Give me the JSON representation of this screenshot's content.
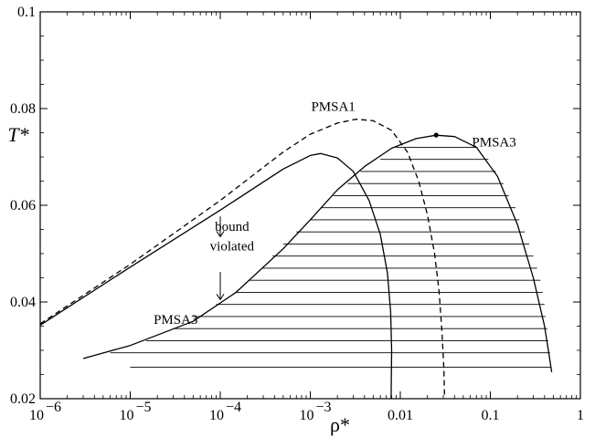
{
  "chart_data": {
    "type": "line",
    "xscale": "log",
    "xlim": [
      1e-06,
      1
    ],
    "ylim": [
      0.02,
      0.1
    ],
    "x_ticks": [
      {
        "value": 1e-06,
        "label": "10",
        "exp": "−6"
      },
      {
        "value": 1e-05,
        "label": "10",
        "exp": "−5"
      },
      {
        "value": 0.0001,
        "label": "10",
        "exp": "−4"
      },
      {
        "value": 0.001,
        "label": "10",
        "exp": "−3"
      },
      {
        "value": 0.01,
        "label": "0.01",
        "exp": ""
      },
      {
        "value": 0.1,
        "label": "0.1",
        "exp": ""
      },
      {
        "value": 1,
        "label": "1",
        "exp": ""
      }
    ],
    "y_ticks": [
      {
        "value": 0.02,
        "label": "0.02"
      },
      {
        "value": 0.04,
        "label": "0.04"
      },
      {
        "value": 0.06,
        "label": "0.06"
      },
      {
        "value": 0.08,
        "label": "0.08"
      },
      {
        "value": 0.1,
        "label": "0.1"
      }
    ],
    "xlabel": "ρ*",
    "ylabel": "T*",
    "series": [
      {
        "name": "PMSA1",
        "style": "dashed",
        "points": [
          [
            1e-06,
            0.0355
          ],
          [
            1e-05,
            0.0478
          ],
          [
            0.0001,
            0.061
          ],
          [
            0.0005,
            0.071
          ],
          [
            0.001,
            0.0747
          ],
          [
            0.002,
            0.077
          ],
          [
            0.0032,
            0.0778
          ],
          [
            0.005,
            0.0775
          ],
          [
            0.008,
            0.0755
          ],
          [
            0.012,
            0.071
          ],
          [
            0.016,
            0.065
          ],
          [
            0.02,
            0.058
          ],
          [
            0.024,
            0.05
          ],
          [
            0.027,
            0.042
          ],
          [
            0.029,
            0.034
          ],
          [
            0.0305,
            0.026
          ],
          [
            0.031,
            0.02
          ]
        ]
      },
      {
        "name": "PMSA3",
        "style": "solid",
        "points": [
          [
            1e-06,
            0.0352
          ],
          [
            1e-05,
            0.0472
          ],
          [
            0.0001,
            0.059
          ],
          [
            0.0005,
            0.0675
          ],
          [
            0.001,
            0.0703
          ],
          [
            0.0013,
            0.0707
          ],
          [
            0.002,
            0.0698
          ],
          [
            0.003,
            0.067
          ],
          [
            0.0045,
            0.061
          ],
          [
            0.006,
            0.054
          ],
          [
            0.0072,
            0.046
          ],
          [
            0.0078,
            0.038
          ],
          [
            0.008,
            0.03
          ],
          [
            0.0079,
            0.02
          ]
        ]
      },
      {
        "name": "PMSA3",
        "style": "solid",
        "points": [
          [
            3e-06,
            0.0283
          ],
          [
            1e-05,
            0.031
          ],
          [
            5e-05,
            0.036
          ],
          [
            0.00015,
            0.042
          ],
          [
            0.0005,
            0.051
          ],
          [
            0.001,
            0.057
          ],
          [
            0.002,
            0.0632
          ],
          [
            0.004,
            0.068
          ],
          [
            0.008,
            0.0718
          ],
          [
            0.015,
            0.0738
          ],
          [
            0.025,
            0.0745
          ],
          [
            0.04,
            0.0742
          ],
          [
            0.07,
            0.072
          ],
          [
            0.12,
            0.066
          ],
          [
            0.2,
            0.056
          ],
          [
            0.3,
            0.045
          ],
          [
            0.4,
            0.035
          ],
          [
            0.45,
            0.029
          ],
          [
            0.48,
            0.0255
          ]
        ]
      }
    ],
    "critical_point": [
      0.025,
      0.0745
    ],
    "tie_lines": [
      {
        "T": 0.072,
        "x1": 0.0088,
        "x2": 0.072
      },
      {
        "T": 0.0695,
        "x1": 0.006,
        "x2": 0.095
      },
      {
        "T": 0.067,
        "x1": 0.0036,
        "x2": 0.115
      },
      {
        "T": 0.0645,
        "x1": 0.0026,
        "x2": 0.14
      },
      {
        "T": 0.062,
        "x1": 0.0018,
        "x2": 0.16
      },
      {
        "T": 0.0595,
        "x1": 0.0013,
        "x2": 0.19
      },
      {
        "T": 0.057,
        "x1": 0.001,
        "x2": 0.21
      },
      {
        "T": 0.0545,
        "x1": 0.0007,
        "x2": 0.24
      },
      {
        "T": 0.052,
        "x1": 0.0005,
        "x2": 0.27
      },
      {
        "T": 0.0495,
        "x1": 0.00038,
        "x2": 0.3
      },
      {
        "T": 0.047,
        "x1": 0.00029,
        "x2": 0.33
      },
      {
        "T": 0.0445,
        "x1": 0.00021,
        "x2": 0.36
      },
      {
        "T": 0.042,
        "x1": 0.00015,
        "x2": 0.38
      },
      {
        "T": 0.0395,
        "x1": 9e-05,
        "x2": 0.4
      },
      {
        "T": 0.037,
        "x1": 5e-05,
        "x2": 0.41
      },
      {
        "T": 0.0345,
        "x1": 3e-05,
        "x2": 0.43
      },
      {
        "T": 0.032,
        "x1": 1.5e-05,
        "x2": 0.44
      },
      {
        "T": 0.0295,
        "x1": 6e-06,
        "x2": 0.46
      },
      {
        "T": 0.0265,
        "x1": 1e-05,
        "x2": 0.47
      }
    ],
    "annotations": [
      {
        "text": "PMSA1",
        "x": 0.0018,
        "y": 0.0795
      },
      {
        "text": "PMSA3",
        "x": 0.11,
        "y": 0.0722
      },
      {
        "text": "PMSA3",
        "x": 3.2e-05,
        "y": 0.0355
      },
      {
        "text": "bound",
        "x": 0.000135,
        "y": 0.0547
      },
      {
        "text": "violated",
        "x": 0.000135,
        "y": 0.0507
      }
    ],
    "arrows": [
      {
        "x": 0.0001,
        "y_from": 0.0577,
        "y_to": 0.0535
      },
      {
        "x": 0.0001,
        "y_from": 0.0462,
        "y_to": 0.0405
      }
    ]
  }
}
